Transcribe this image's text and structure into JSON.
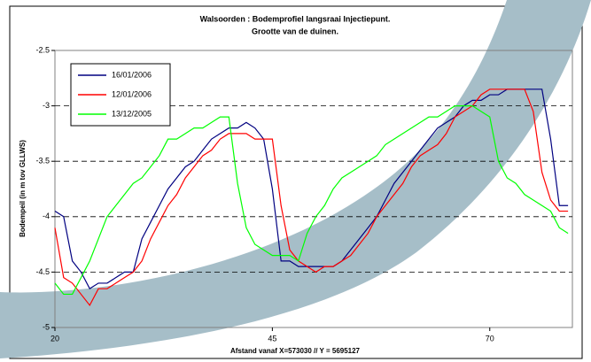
{
  "chart_data": {
    "type": "line",
    "title": "Walsoorden : Bodemprofiel langsraai Injectiepunt.",
    "subtitle": "Grootte van de duinen.",
    "x_label": "Afstand vanaf X=573030 // Y = 5695127",
    "y_label": "Bodempeil (in m tov GLLWS)",
    "x": [
      20,
      21,
      22,
      23,
      24,
      25,
      26,
      27,
      28,
      29,
      30,
      31,
      32,
      33,
      34,
      35,
      36,
      37,
      38,
      39,
      40,
      41,
      42,
      43,
      44,
      45,
      46,
      47,
      48,
      49,
      50,
      51,
      52,
      53,
      54,
      55,
      56,
      57,
      58,
      59,
      60,
      61,
      62,
      63,
      64,
      65,
      66,
      67,
      68,
      69,
      70,
      71,
      72,
      73,
      74,
      75,
      76,
      77,
      78,
      79
    ],
    "series": [
      {
        "name": "16/01/2006",
        "color": "#000080",
        "values": [
          -3.95,
          -4.0,
          -4.4,
          -4.5,
          -4.65,
          -4.6,
          -4.6,
          -4.55,
          -4.5,
          -4.5,
          -4.2,
          -4.05,
          -3.9,
          -3.75,
          -3.65,
          -3.55,
          -3.5,
          -3.4,
          -3.3,
          -3.25,
          -3.2,
          -3.2,
          -3.15,
          -3.2,
          -3.3,
          -3.75,
          -4.4,
          -4.4,
          -4.45,
          -4.45,
          -4.45,
          -4.45,
          -4.45,
          -4.4,
          -4.3,
          -4.2,
          -4.1,
          -4.0,
          -3.85,
          -3.7,
          -3.6,
          -3.5,
          -3.4,
          -3.3,
          -3.2,
          -3.15,
          -3.1,
          -3.0,
          -2.95,
          -2.95,
          -2.9,
          -2.9,
          -2.85,
          -2.85,
          -2.85,
          -2.85,
          -2.85,
          -3.3,
          -3.9,
          -3.9
        ]
      },
      {
        "name": "12/01/2006",
        "color": "#ff0000",
        "values": [
          -4.1,
          -4.55,
          -4.6,
          -4.7,
          -4.8,
          -4.65,
          -4.65,
          -4.6,
          -4.55,
          -4.5,
          -4.4,
          -4.2,
          -4.05,
          -3.9,
          -3.8,
          -3.65,
          -3.55,
          -3.45,
          -3.4,
          -3.3,
          -3.25,
          -3.25,
          -3.25,
          -3.3,
          -3.3,
          -3.3,
          -3.9,
          -4.3,
          -4.4,
          -4.45,
          -4.5,
          -4.45,
          -4.45,
          -4.4,
          -4.35,
          -4.25,
          -4.15,
          -4.0,
          -3.9,
          -3.8,
          -3.7,
          -3.55,
          -3.45,
          -3.4,
          -3.35,
          -3.25,
          -3.1,
          -3.05,
          -3.0,
          -2.9,
          -2.85,
          -2.85,
          -2.85,
          -2.85,
          -2.85,
          -3.05,
          -3.6,
          -3.85,
          -3.95,
          -3.95
        ]
      },
      {
        "name": "13/12/2005",
        "color": "#00ff00",
        "values": [
          -4.6,
          -4.7,
          -4.7,
          -4.55,
          -4.4,
          -4.2,
          -4.0,
          -3.9,
          -3.8,
          -3.7,
          -3.65,
          -3.55,
          -3.45,
          -3.3,
          -3.3,
          -3.25,
          -3.2,
          -3.2,
          -3.15,
          -3.1,
          -3.1,
          -3.7,
          -4.1,
          -4.25,
          -4.3,
          -4.35,
          -4.35,
          -4.35,
          -4.4,
          -4.15,
          -4.0,
          -3.9,
          -3.75,
          -3.65,
          -3.6,
          -3.55,
          -3.5,
          -3.45,
          -3.35,
          -3.3,
          -3.25,
          -3.2,
          -3.15,
          -3.1,
          -3.1,
          -3.05,
          -3.0,
          -3.0,
          -3.0,
          -3.05,
          -3.1,
          -3.5,
          -3.65,
          -3.7,
          -3.8,
          -3.85,
          -3.9,
          -3.95,
          -4.1,
          -4.15
        ]
      }
    ],
    "xlim": [
      20,
      79.5
    ],
    "xticks": [
      20,
      45,
      70
    ],
    "ylim": [
      -5,
      -2.5
    ],
    "yticks": [
      -5,
      -4.5,
      -4,
      -3.5,
      -3,
      -2.5
    ],
    "grid": true,
    "legend": "upper left"
  }
}
